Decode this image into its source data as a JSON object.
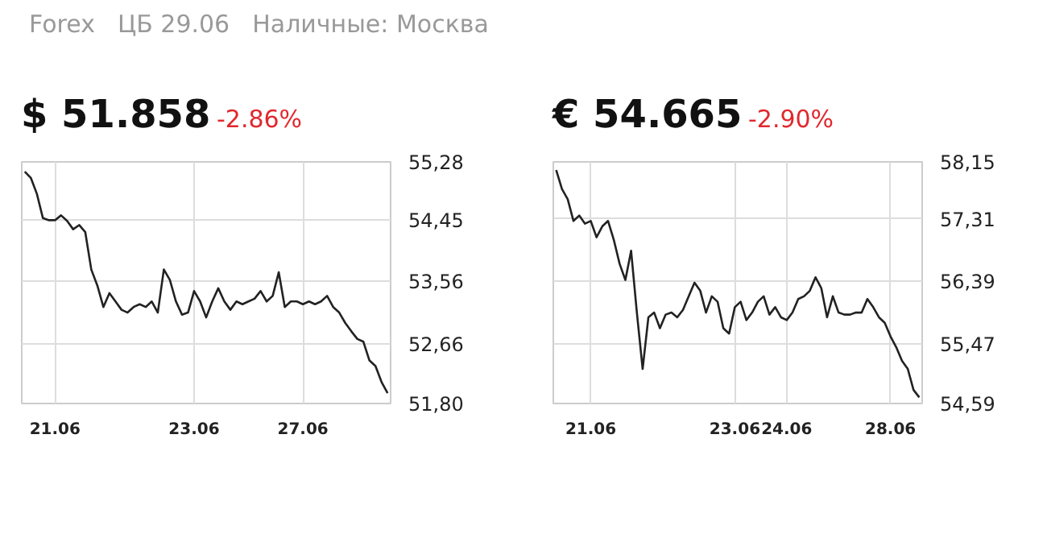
{
  "chart_data": [
    {
      "type": "line",
      "title": "$ 51.858",
      "subtitle": "-2.86%",
      "annotations": [
        "Forex",
        "ЦБ 29.06",
        "Наличные: Москва"
      ],
      "grid": true,
      "color": "#222222",
      "categories": [
        null,
        null,
        null,
        null,
        null,
        "21.06",
        null,
        null,
        null,
        null,
        null,
        null,
        null,
        null,
        null,
        null,
        null,
        null,
        null,
        null,
        null,
        null,
        null,
        null,
        null,
        null,
        null,
        null,
        "23.06",
        null,
        null,
        null,
        null,
        null,
        null,
        null,
        null,
        null,
        null,
        null,
        null,
        null,
        null,
        null,
        null,
        null,
        "27.06",
        null,
        null,
        null,
        null,
        null,
        null,
        null,
        null,
        null,
        null,
        null,
        null,
        null,
        null
      ],
      "values": [
        55.14,
        55.05,
        54.82,
        54.47,
        54.44,
        54.44,
        54.51,
        54.43,
        54.31,
        54.37,
        54.27,
        53.73,
        53.5,
        53.19,
        53.39,
        53.27,
        53.15,
        53.11,
        53.19,
        53.23,
        53.19,
        53.27,
        53.11,
        53.73,
        53.58,
        53.27,
        53.08,
        53.11,
        53.42,
        53.27,
        53.04,
        53.27,
        53.46,
        53.27,
        53.15,
        53.27,
        53.23,
        53.27,
        53.31,
        53.42,
        53.27,
        53.35,
        53.69,
        53.19,
        53.27,
        53.27,
        53.23,
        53.27,
        53.23,
        53.27,
        53.35,
        53.19,
        53.11,
        52.96,
        52.84,
        52.73,
        52.69,
        52.42,
        52.34,
        52.11,
        51.95
      ],
      "ylim": [
        51.8,
        55.28
      ],
      "yticks": [
        {
          "value": 51.8,
          "label": "51,80"
        },
        {
          "value": 52.66,
          "label": "52,66"
        },
        {
          "value": 53.56,
          "label": "53,56"
        },
        {
          "value": 54.45,
          "label": "54,45"
        },
        {
          "value": 55.28,
          "label": "55,28"
        }
      ]
    },
    {
      "type": "line",
      "title": "€ 54.665",
      "subtitle": "-2.90%",
      "grid": true,
      "color": "#222222",
      "categories": [
        null,
        null,
        null,
        null,
        null,
        null,
        "21.06",
        null,
        null,
        null,
        null,
        null,
        null,
        null,
        null,
        null,
        null,
        null,
        null,
        null,
        null,
        null,
        null,
        null,
        null,
        null,
        null,
        null,
        null,
        null,
        null,
        "23.06",
        null,
        null,
        null,
        null,
        null,
        null,
        null,
        null,
        "24.06",
        null,
        null,
        null,
        null,
        null,
        null,
        null,
        null,
        null,
        null,
        null,
        null,
        null,
        null,
        null,
        null,
        null,
        "28.06",
        null,
        null,
        null,
        null,
        null
      ],
      "values": [
        58.03,
        57.75,
        57.6,
        57.28,
        57.36,
        57.24,
        57.28,
        57.04,
        57.2,
        57.28,
        57.0,
        56.65,
        56.41,
        56.84,
        55.93,
        55.1,
        55.86,
        55.93,
        55.7,
        55.9,
        55.93,
        55.86,
        55.97,
        56.17,
        56.37,
        56.25,
        55.93,
        56.17,
        56.09,
        55.7,
        55.62,
        56.01,
        56.09,
        55.82,
        55.93,
        56.09,
        56.17,
        55.9,
        56.01,
        55.86,
        55.82,
        55.93,
        56.13,
        56.17,
        56.25,
        56.45,
        56.29,
        55.86,
        56.17,
        55.93,
        55.9,
        55.9,
        55.93,
        55.93,
        56.13,
        56.01,
        55.86,
        55.78,
        55.58,
        55.42,
        55.22,
        55.1,
        54.79,
        54.68
      ],
      "ylim": [
        54.59,
        58.15
      ],
      "yticks": [
        {
          "value": 54.59,
          "label": "54,59"
        },
        {
          "value": 55.47,
          "label": "55,47"
        },
        {
          "value": 56.39,
          "label": "56,39"
        },
        {
          "value": 57.31,
          "label": "57,31"
        },
        {
          "value": 58.15,
          "label": "58,15"
        }
      ]
    }
  ]
}
